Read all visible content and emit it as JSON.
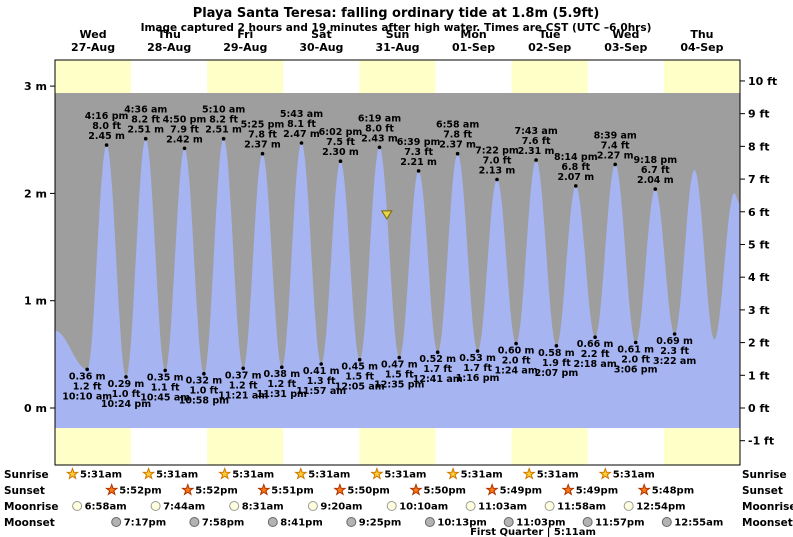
{
  "title": "Playa Santa Teresa: falling ordinary tide at 1.8m (5.9ft)",
  "subtitle": "Image captured 2 hours and 19 minutes after high water. Times are CST (UTC –6.0hrs)",
  "chart_data": {
    "type": "area",
    "y_axis_left": {
      "unit": "m",
      "values": [
        0,
        1,
        2,
        3
      ],
      "labels": [
        "0 m",
        "1 m",
        "2 m",
        "3 m"
      ]
    },
    "y_axis_right": {
      "unit": "ft",
      "min": -1,
      "max": 10
    },
    "days": [
      {
        "weekday": "Wed",
        "date": "27-Aug"
      },
      {
        "weekday": "Thu",
        "date": "28-Aug"
      },
      {
        "weekday": "Fri",
        "date": "29-Aug"
      },
      {
        "weekday": "Sat",
        "date": "30-Aug"
      },
      {
        "weekday": "Sun",
        "date": "31-Aug"
      },
      {
        "weekday": "Mon",
        "date": "01-Sep"
      },
      {
        "weekday": "Tue",
        "date": "02-Sep"
      },
      {
        "weekday": "Wed",
        "date": "03-Sep"
      },
      {
        "weekday": "Thu",
        "date": "04-Sep"
      }
    ],
    "tide_events": [
      {
        "type": "anchor",
        "day": 0,
        "time": "12:00 am",
        "height": "0.72 m",
        "labeled": false
      },
      {
        "type": "low",
        "day": 0,
        "time": "10:10 am",
        "height": "0.36 m",
        "height_ft": "1.2 ft",
        "labeled": true
      },
      {
        "type": "high",
        "day": 0,
        "time": "4:16 pm",
        "height": "2.45 m",
        "height_ft": "8.0 ft",
        "labeled": true
      },
      {
        "type": "low",
        "day": 0,
        "time": "10:24 pm",
        "height": "0.29 m",
        "height_ft": "1.0 ft",
        "labeled": true
      },
      {
        "type": "high",
        "day": 1,
        "time": "4:36 am",
        "height": "2.51 m",
        "height_ft": "8.2 ft",
        "labeled": true
      },
      {
        "type": "low",
        "day": 1,
        "time": "10:45 am",
        "height": "0.35 m",
        "height_ft": "1.1 ft",
        "labeled": true
      },
      {
        "type": "high",
        "day": 1,
        "time": "4:50 pm",
        "height": "2.42 m",
        "height_ft": "7.9 ft",
        "labeled": true
      },
      {
        "type": "low",
        "day": 1,
        "time": "10:58 pm",
        "height": "0.32 m",
        "height_ft": "1.0 ft",
        "labeled": true
      },
      {
        "type": "high",
        "day": 2,
        "time": "5:10 am",
        "height": "2.51 m",
        "height_ft": "8.2 ft",
        "labeled": true
      },
      {
        "type": "low",
        "day": 2,
        "time": "11:21 am",
        "height": "0.37 m",
        "height_ft": "1.2 ft",
        "labeled": true
      },
      {
        "type": "high",
        "day": 2,
        "time": "5:25 pm",
        "height": "2.37 m",
        "height_ft": "7.8 ft",
        "labeled": true
      },
      {
        "type": "low",
        "day": 2,
        "time": "11:31 pm",
        "height": "0.38 m",
        "height_ft": "1.2 ft",
        "labeled": true
      },
      {
        "type": "high",
        "day": 3,
        "time": "5:43 am",
        "height": "2.47 m",
        "height_ft": "8.1 ft",
        "labeled": true
      },
      {
        "type": "low",
        "day": 3,
        "time": "11:57 am",
        "height": "0.41 m",
        "height_ft": "1.3 ft",
        "labeled": true
      },
      {
        "type": "high",
        "day": 3,
        "time": "6:02 pm",
        "height": "2.30 m",
        "height_ft": "7.5 ft",
        "labeled": true
      },
      {
        "type": "low",
        "day": 4,
        "time": "12:05 am",
        "height": "0.45 m",
        "height_ft": "1.5 ft",
        "labeled": true
      },
      {
        "type": "high",
        "day": 4,
        "time": "6:19 am",
        "height": "2.43 m",
        "height_ft": "8.0 ft",
        "labeled": true
      },
      {
        "type": "low",
        "day": 4,
        "time": "12:35 pm",
        "height": "0.47 m",
        "height_ft": "1.5 ft",
        "labeled": true
      },
      {
        "type": "high",
        "day": 4,
        "time": "6:39 pm",
        "height": "2.21 m",
        "height_ft": "7.3 ft",
        "labeled": true
      },
      {
        "type": "low",
        "day": 5,
        "time": "12:41 am",
        "height": "0.52 m",
        "height_ft": "1.7 ft",
        "labeled": true
      },
      {
        "type": "high",
        "day": 5,
        "time": "6:58 am",
        "height": "2.37 m",
        "height_ft": "7.8 ft",
        "labeled": true
      },
      {
        "type": "low",
        "day": 5,
        "time": "1:16 pm",
        "height": "0.53 m",
        "height_ft": "1.7 ft",
        "labeled": true
      },
      {
        "type": "high",
        "day": 5,
        "time": "7:22 pm",
        "height": "2.13 m",
        "height_ft": "7.0 ft",
        "labeled": true
      },
      {
        "type": "low",
        "day": 6,
        "time": "1:24 am",
        "height": "0.60 m",
        "height_ft": "2.0 ft",
        "labeled": true
      },
      {
        "type": "high",
        "day": 6,
        "time": "7:43 am",
        "height": "2.31 m",
        "height_ft": "7.6 ft",
        "labeled": true
      },
      {
        "type": "low",
        "day": 6,
        "time": "2:07 pm",
        "height": "0.58 m",
        "height_ft": "1.9 ft",
        "labeled": true
      },
      {
        "type": "high",
        "day": 6,
        "time": "8:14 pm",
        "height": "2.07 m",
        "height_ft": "6.8 ft",
        "labeled": true
      },
      {
        "type": "low",
        "day": 7,
        "time": "2:18 am",
        "height": "0.66 m",
        "height_ft": "2.2 ft",
        "labeled": true
      },
      {
        "type": "high",
        "day": 7,
        "time": "8:39 am",
        "height": "2.27 m",
        "height_ft": "7.4 ft",
        "labeled": true
      },
      {
        "type": "low",
        "day": 7,
        "time": "3:06 pm",
        "height": "0.61 m",
        "height_ft": "2.0 ft",
        "labeled": true
      },
      {
        "type": "high",
        "day": 7,
        "time": "9:18 pm",
        "height": "2.04 m",
        "height_ft": "6.7 ft",
        "labeled": true
      },
      {
        "type": "low",
        "day": 8,
        "time": "3:22 am",
        "height": "0.69 m",
        "height_ft": "2.3 ft",
        "labeled": true
      },
      {
        "type": "high",
        "day": 8,
        "time": "9:39 am",
        "height": "2.22 m",
        "labeled": false
      },
      {
        "type": "low",
        "day": 8,
        "time": "3:54 pm",
        "height": "0.64 m",
        "labeled": false
      },
      {
        "type": "high",
        "day": 8,
        "time": "10:10 pm",
        "height": "2.00 m",
        "labeled": false
      },
      {
        "type": "anchor",
        "day": 8,
        "time": "11:59 pm",
        "height": "1.90 m",
        "labeled": false
      }
    ],
    "current_marker": {
      "day": 4,
      "time": "8:38 am",
      "height_m": 1.8
    },
    "layout_hints": {
      "grid": false,
      "band_top_m": 2.94,
      "band_bottom_m": -0.19
    },
    "colors": {
      "day_band_a": "#ffffc8",
      "day_band_b": "#ffffff",
      "plot_bg": "#9e9e9e",
      "tide_fill": "#a6b4f2",
      "day_label": "#dd0000",
      "annotation": "#000000",
      "marker_fill": "#e8d44d",
      "marker_stroke": "#7a6a00"
    }
  },
  "astro": {
    "rows": [
      {
        "label": "Sunrise",
        "icon": "sunrise-star",
        "entries": [
          {
            "day": 0,
            "time": "5:31am"
          },
          {
            "day": 1,
            "time": "5:31am"
          },
          {
            "day": 2,
            "time": "5:31am"
          },
          {
            "day": 3,
            "time": "5:31am"
          },
          {
            "day": 4,
            "time": "5:31am"
          },
          {
            "day": 5,
            "time": "5:31am"
          },
          {
            "day": 6,
            "time": "5:31am"
          },
          {
            "day": 7,
            "time": "5:31am"
          }
        ]
      },
      {
        "label": "Sunset",
        "icon": "sunset-star",
        "entries": [
          {
            "day": 0,
            "time": "5:52pm"
          },
          {
            "day": 1,
            "time": "5:52pm"
          },
          {
            "day": 2,
            "time": "5:51pm"
          },
          {
            "day": 3,
            "time": "5:50pm"
          },
          {
            "day": 4,
            "time": "5:50pm"
          },
          {
            "day": 5,
            "time": "5:49pm"
          },
          {
            "day": 6,
            "time": "5:49pm"
          },
          {
            "day": 7,
            "time": "5:48pm"
          }
        ]
      },
      {
        "label": "Moonrise",
        "icon": "moonrise-circle",
        "entries": [
          {
            "day": 0,
            "time": "6:58am"
          },
          {
            "day": 1,
            "time": "7:44am"
          },
          {
            "day": 2,
            "time": "8:31am"
          },
          {
            "day": 3,
            "time": "9:20am"
          },
          {
            "day": 4,
            "time": "10:10am"
          },
          {
            "day": 5,
            "time": "11:03am"
          },
          {
            "day": 6,
            "time": "11:58am"
          },
          {
            "day": 7,
            "time": "12:54pm"
          }
        ]
      },
      {
        "label": "Moonset",
        "icon": "moonset-circle",
        "entries": [
          {
            "day": 0,
            "time": "7:17pm"
          },
          {
            "day": 1,
            "time": "7:58pm"
          },
          {
            "day": 2,
            "time": "8:41pm"
          },
          {
            "day": 3,
            "time": "9:25pm"
          },
          {
            "day": 4,
            "time": "10:13pm"
          },
          {
            "day": 5,
            "time": "11:03pm"
          },
          {
            "day": 6,
            "time": "11:57pm"
          },
          {
            "day": 8,
            "time": "12:55am"
          }
        ]
      }
    ],
    "icons": {
      "sunrise-star": {
        "fill": "#ffcc33",
        "stroke": "#cc7700"
      },
      "sunset-star": {
        "fill": "#ff7711",
        "stroke": "#aa3300"
      },
      "moonrise-circle": {
        "fill": "#ffffdd",
        "stroke": "#999999"
      },
      "moonset-circle": {
        "fill": "#b3b3b3",
        "stroke": "#666666"
      }
    },
    "moon_phase": "First Quarter | 5:11am"
  }
}
